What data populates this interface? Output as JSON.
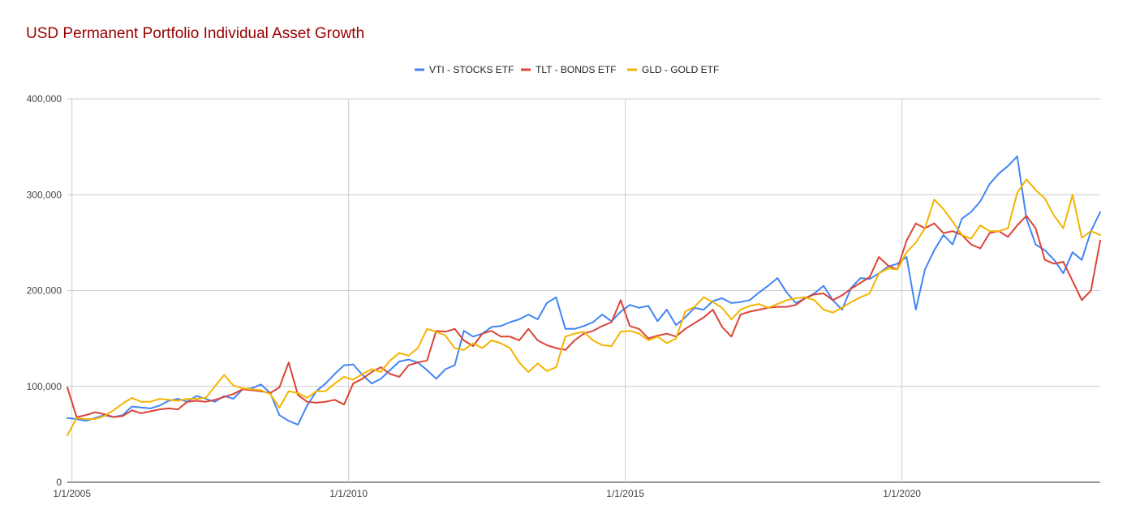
{
  "chart_data": {
    "type": "line",
    "title": "USD Permanent Portfolio Individual Asset Growth",
    "xlabel": "",
    "ylabel": "",
    "x_ticks": [
      "1/1/2005",
      "1/1/2010",
      "1/1/2015",
      "1/1/2020"
    ],
    "y_ticks": [
      "0",
      "100,000",
      "200,000",
      "300,000",
      "400,000"
    ],
    "ylim": [
      0,
      400000
    ],
    "xlim": [
      "2004-12-01",
      "2023-08-01"
    ],
    "grid": true,
    "legend_position": "top",
    "x": [
      "2004-12",
      "2005-02",
      "2005-04",
      "2005-06",
      "2005-08",
      "2005-10",
      "2005-12",
      "2006-02",
      "2006-04",
      "2006-06",
      "2006-08",
      "2006-10",
      "2006-12",
      "2007-02",
      "2007-04",
      "2007-06",
      "2007-08",
      "2007-10",
      "2007-12",
      "2008-02",
      "2008-04",
      "2008-06",
      "2008-08",
      "2008-10",
      "2008-12",
      "2009-02",
      "2009-04",
      "2009-06",
      "2009-08",
      "2009-10",
      "2009-12",
      "2010-02",
      "2010-04",
      "2010-06",
      "2010-08",
      "2010-10",
      "2010-12",
      "2011-02",
      "2011-04",
      "2011-06",
      "2011-08",
      "2011-10",
      "2011-12",
      "2012-02",
      "2012-04",
      "2012-06",
      "2012-08",
      "2012-10",
      "2012-12",
      "2013-02",
      "2013-04",
      "2013-06",
      "2013-08",
      "2013-10",
      "2013-12",
      "2014-02",
      "2014-04",
      "2014-06",
      "2014-08",
      "2014-10",
      "2014-12",
      "2015-02",
      "2015-04",
      "2015-06",
      "2015-08",
      "2015-10",
      "2015-12",
      "2016-02",
      "2016-04",
      "2016-06",
      "2016-08",
      "2016-10",
      "2016-12",
      "2017-02",
      "2017-04",
      "2017-06",
      "2017-08",
      "2017-10",
      "2017-12",
      "2018-02",
      "2018-04",
      "2018-06",
      "2018-08",
      "2018-10",
      "2018-12",
      "2019-02",
      "2019-04",
      "2019-06",
      "2019-08",
      "2019-10",
      "2019-12",
      "2020-02",
      "2020-04",
      "2020-06",
      "2020-08",
      "2020-10",
      "2020-12",
      "2021-02",
      "2021-04",
      "2021-06",
      "2021-08",
      "2021-10",
      "2021-12",
      "2022-02",
      "2022-04",
      "2022-06",
      "2022-08",
      "2022-10",
      "2022-12",
      "2023-02",
      "2023-04",
      "2023-06",
      "2023-08"
    ],
    "series": [
      {
        "name": "VTI - STOCKS ETF",
        "color": "#4285F4",
        "values": [
          67000,
          66000,
          64000,
          67000,
          70000,
          68000,
          70000,
          79000,
          78000,
          77000,
          80000,
          85000,
          87000,
          84000,
          90000,
          87000,
          84000,
          90000,
          87000,
          97000,
          98000,
          102000,
          93000,
          70000,
          64000,
          60000,
          80000,
          95000,
          103000,
          113000,
          122000,
          123000,
          112000,
          103000,
          108000,
          117000,
          126000,
          128000,
          125000,
          117000,
          108000,
          118000,
          122000,
          158000,
          152000,
          155000,
          162000,
          163000,
          167000,
          170000,
          175000,
          170000,
          187000,
          193000,
          160000,
          160000,
          163000,
          167000,
          175000,
          168000,
          178000,
          185000,
          182000,
          184000,
          168000,
          180000,
          164000,
          172000,
          182000,
          180000,
          189000,
          192000,
          187000,
          188000,
          190000,
          198000,
          205000,
          213000,
          198000,
          187000,
          192000,
          197000,
          205000,
          190000,
          180000,
          203000,
          213000,
          212000,
          218000,
          225000,
          228000,
          235000,
          180000,
          222000,
          242000,
          258000,
          248000,
          275000,
          282000,
          293000,
          311000,
          322000,
          330000,
          340000,
          275000,
          248000,
          242000,
          232000,
          218000,
          240000,
          232000,
          262000,
          282000
        ]
      },
      {
        "name": "TLT - BONDS ETF",
        "color": "#DB4437",
        "values": [
          99000,
          68000,
          70000,
          73000,
          71000,
          68000,
          69000,
          75000,
          72000,
          74000,
          76000,
          77000,
          76000,
          84000,
          85000,
          84000,
          86000,
          89000,
          92000,
          97000,
          96000,
          95000,
          93000,
          99000,
          125000,
          91000,
          84000,
          83000,
          84000,
          86000,
          81000,
          103000,
          108000,
          115000,
          120000,
          113000,
          110000,
          122000,
          125000,
          127000,
          158000,
          157000,
          160000,
          148000,
          142000,
          155000,
          158000,
          152000,
          152000,
          148000,
          160000,
          148000,
          143000,
          140000,
          138000,
          148000,
          155000,
          158000,
          163000,
          167000,
          190000,
          163000,
          160000,
          150000,
          153000,
          155000,
          152000,
          160000,
          166000,
          172000,
          180000,
          162000,
          152000,
          175000,
          178000,
          180000,
          182000,
          183000,
          183000,
          185000,
          192000,
          196000,
          197000,
          190000,
          195000,
          202000,
          208000,
          214000,
          235000,
          226000,
          222000,
          252000,
          270000,
          265000,
          270000,
          260000,
          262000,
          258000,
          248000,
          244000,
          260000,
          262000,
          256000,
          268000,
          278000,
          265000,
          232000,
          228000,
          230000,
          210000,
          190000,
          200000,
          252000
        ]
      },
      {
        "name": "GLD - GOLD ETF",
        "color": "#F4B400",
        "values": [
          49000,
          67000,
          66000,
          66000,
          69000,
          75000,
          82000,
          88000,
          84000,
          84000,
          87000,
          86000,
          85000,
          87000,
          87000,
          88000,
          100000,
          112000,
          101000,
          98000,
          97000,
          96000,
          92000,
          78000,
          95000,
          93000,
          88000,
          95000,
          95000,
          103000,
          110000,
          107000,
          113000,
          118000,
          115000,
          127000,
          135000,
          132000,
          140000,
          160000,
          157000,
          153000,
          140000,
          138000,
          145000,
          140000,
          148000,
          145000,
          140000,
          125000,
          115000,
          124000,
          116000,
          120000,
          152000,
          155000,
          157000,
          148000,
          143000,
          142000,
          157000,
          158000,
          155000,
          148000,
          152000,
          145000,
          150000,
          178000,
          183000,
          193000,
          188000,
          182000,
          170000,
          180000,
          184000,
          186000,
          182000,
          186000,
          190000,
          192000,
          193000,
          190000,
          180000,
          177000,
          182000,
          188000,
          193000,
          197000,
          218000,
          223000,
          222000,
          240000,
          250000,
          265000,
          295000,
          285000,
          272000,
          258000,
          254000,
          268000,
          262000,
          262000,
          265000,
          302000,
          316000,
          305000,
          296000,
          278000,
          265000,
          300000,
          255000,
          262000,
          258000
        ]
      }
    ]
  }
}
